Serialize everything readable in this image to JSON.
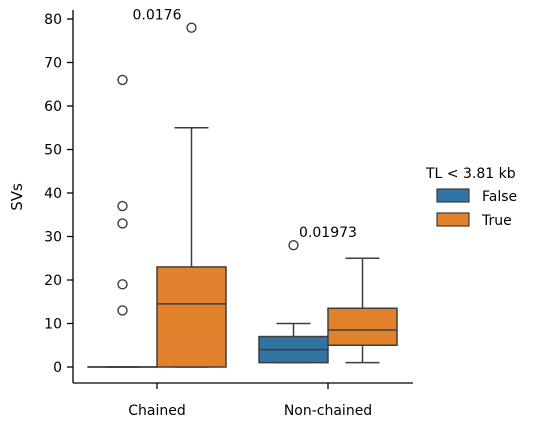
{
  "chart_data": {
    "type": "box",
    "xlabel": "",
    "ylabel": "SVs",
    "ylim": [
      0,
      80
    ],
    "yticks": [
      0,
      10,
      20,
      30,
      40,
      50,
      60,
      70,
      80
    ],
    "categories": [
      "Chained",
      "Non-chained"
    ],
    "legend": {
      "title": "TL < 3.81 kb",
      "placement": "right",
      "entries": [
        "False",
        "True"
      ]
    },
    "colors": {
      "False": "#3274a1",
      "True": "#e1812c",
      "edge": "#3d3d3d"
    },
    "series": [
      {
        "name": "False",
        "boxes": [
          {
            "category": "Chained",
            "whislo": 0,
            "q1": 0,
            "med": 0,
            "q3": 0,
            "whishi": 0,
            "fliers": [
              13,
              19,
              33,
              37,
              66
            ]
          },
          {
            "category": "Non-chained",
            "whislo": 1,
            "q1": 1,
            "med": 4,
            "q3": 7,
            "whishi": 10,
            "fliers": [
              28
            ]
          }
        ]
      },
      {
        "name": "True",
        "boxes": [
          {
            "category": "Chained",
            "whislo": 0,
            "q1": 0,
            "med": 14.5,
            "q3": 23,
            "whishi": 55,
            "fliers": [
              78
            ]
          },
          {
            "category": "Non-chained",
            "whislo": 1,
            "q1": 5,
            "med": 8.5,
            "q3": 13.5,
            "whishi": 25,
            "fliers": []
          }
        ]
      }
    ],
    "annotations": [
      {
        "category": "Chained",
        "text": "0.0176",
        "y": 78
      },
      {
        "category": "Non-chained",
        "text": "0.01973",
        "y": 28
      }
    ]
  }
}
